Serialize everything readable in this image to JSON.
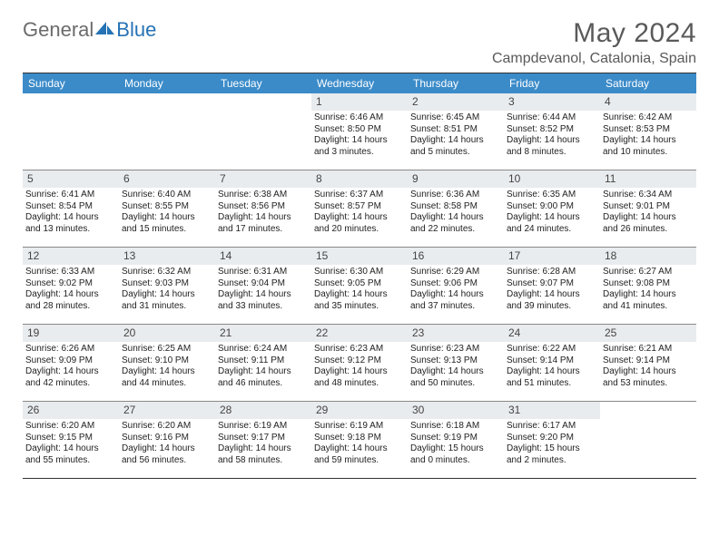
{
  "brand": {
    "word1": "General",
    "word2": "Blue"
  },
  "title": "May 2024",
  "location": "Campdevanol, Catalonia, Spain",
  "colors": {
    "header_bg": "#3b8bc9",
    "header_text": "#ffffff",
    "daynum_bg": "#e9ecef",
    "border": "#333333",
    "row_border": "#888888",
    "logo_gray": "#6b6b6b",
    "logo_blue": "#2572b4",
    "title_color": "#5a5a5a"
  },
  "day_names": [
    "Sunday",
    "Monday",
    "Tuesday",
    "Wednesday",
    "Thursday",
    "Friday",
    "Saturday"
  ],
  "weeks": [
    [
      {
        "n": "",
        "empty": true
      },
      {
        "n": "",
        "empty": true
      },
      {
        "n": "",
        "empty": true
      },
      {
        "n": "1",
        "sunrise": "Sunrise: 6:46 AM",
        "sunset": "Sunset: 8:50 PM",
        "daylight": "Daylight: 14 hours and 3 minutes."
      },
      {
        "n": "2",
        "sunrise": "Sunrise: 6:45 AM",
        "sunset": "Sunset: 8:51 PM",
        "daylight": "Daylight: 14 hours and 5 minutes."
      },
      {
        "n": "3",
        "sunrise": "Sunrise: 6:44 AM",
        "sunset": "Sunset: 8:52 PM",
        "daylight": "Daylight: 14 hours and 8 minutes."
      },
      {
        "n": "4",
        "sunrise": "Sunrise: 6:42 AM",
        "sunset": "Sunset: 8:53 PM",
        "daylight": "Daylight: 14 hours and 10 minutes."
      }
    ],
    [
      {
        "n": "5",
        "sunrise": "Sunrise: 6:41 AM",
        "sunset": "Sunset: 8:54 PM",
        "daylight": "Daylight: 14 hours and 13 minutes."
      },
      {
        "n": "6",
        "sunrise": "Sunrise: 6:40 AM",
        "sunset": "Sunset: 8:55 PM",
        "daylight": "Daylight: 14 hours and 15 minutes."
      },
      {
        "n": "7",
        "sunrise": "Sunrise: 6:38 AM",
        "sunset": "Sunset: 8:56 PM",
        "daylight": "Daylight: 14 hours and 17 minutes."
      },
      {
        "n": "8",
        "sunrise": "Sunrise: 6:37 AM",
        "sunset": "Sunset: 8:57 PM",
        "daylight": "Daylight: 14 hours and 20 minutes."
      },
      {
        "n": "9",
        "sunrise": "Sunrise: 6:36 AM",
        "sunset": "Sunset: 8:58 PM",
        "daylight": "Daylight: 14 hours and 22 minutes."
      },
      {
        "n": "10",
        "sunrise": "Sunrise: 6:35 AM",
        "sunset": "Sunset: 9:00 PM",
        "daylight": "Daylight: 14 hours and 24 minutes."
      },
      {
        "n": "11",
        "sunrise": "Sunrise: 6:34 AM",
        "sunset": "Sunset: 9:01 PM",
        "daylight": "Daylight: 14 hours and 26 minutes."
      }
    ],
    [
      {
        "n": "12",
        "sunrise": "Sunrise: 6:33 AM",
        "sunset": "Sunset: 9:02 PM",
        "daylight": "Daylight: 14 hours and 28 minutes."
      },
      {
        "n": "13",
        "sunrise": "Sunrise: 6:32 AM",
        "sunset": "Sunset: 9:03 PM",
        "daylight": "Daylight: 14 hours and 31 minutes."
      },
      {
        "n": "14",
        "sunrise": "Sunrise: 6:31 AM",
        "sunset": "Sunset: 9:04 PM",
        "daylight": "Daylight: 14 hours and 33 minutes."
      },
      {
        "n": "15",
        "sunrise": "Sunrise: 6:30 AM",
        "sunset": "Sunset: 9:05 PM",
        "daylight": "Daylight: 14 hours and 35 minutes."
      },
      {
        "n": "16",
        "sunrise": "Sunrise: 6:29 AM",
        "sunset": "Sunset: 9:06 PM",
        "daylight": "Daylight: 14 hours and 37 minutes."
      },
      {
        "n": "17",
        "sunrise": "Sunrise: 6:28 AM",
        "sunset": "Sunset: 9:07 PM",
        "daylight": "Daylight: 14 hours and 39 minutes."
      },
      {
        "n": "18",
        "sunrise": "Sunrise: 6:27 AM",
        "sunset": "Sunset: 9:08 PM",
        "daylight": "Daylight: 14 hours and 41 minutes."
      }
    ],
    [
      {
        "n": "19",
        "sunrise": "Sunrise: 6:26 AM",
        "sunset": "Sunset: 9:09 PM",
        "daylight": "Daylight: 14 hours and 42 minutes."
      },
      {
        "n": "20",
        "sunrise": "Sunrise: 6:25 AM",
        "sunset": "Sunset: 9:10 PM",
        "daylight": "Daylight: 14 hours and 44 minutes."
      },
      {
        "n": "21",
        "sunrise": "Sunrise: 6:24 AM",
        "sunset": "Sunset: 9:11 PM",
        "daylight": "Daylight: 14 hours and 46 minutes."
      },
      {
        "n": "22",
        "sunrise": "Sunrise: 6:23 AM",
        "sunset": "Sunset: 9:12 PM",
        "daylight": "Daylight: 14 hours and 48 minutes."
      },
      {
        "n": "23",
        "sunrise": "Sunrise: 6:23 AM",
        "sunset": "Sunset: 9:13 PM",
        "daylight": "Daylight: 14 hours and 50 minutes."
      },
      {
        "n": "24",
        "sunrise": "Sunrise: 6:22 AM",
        "sunset": "Sunset: 9:14 PM",
        "daylight": "Daylight: 14 hours and 51 minutes."
      },
      {
        "n": "25",
        "sunrise": "Sunrise: 6:21 AM",
        "sunset": "Sunset: 9:14 PM",
        "daylight": "Daylight: 14 hours and 53 minutes."
      }
    ],
    [
      {
        "n": "26",
        "sunrise": "Sunrise: 6:20 AM",
        "sunset": "Sunset: 9:15 PM",
        "daylight": "Daylight: 14 hours and 55 minutes."
      },
      {
        "n": "27",
        "sunrise": "Sunrise: 6:20 AM",
        "sunset": "Sunset: 9:16 PM",
        "daylight": "Daylight: 14 hours and 56 minutes."
      },
      {
        "n": "28",
        "sunrise": "Sunrise: 6:19 AM",
        "sunset": "Sunset: 9:17 PM",
        "daylight": "Daylight: 14 hours and 58 minutes."
      },
      {
        "n": "29",
        "sunrise": "Sunrise: 6:19 AM",
        "sunset": "Sunset: 9:18 PM",
        "daylight": "Daylight: 14 hours and 59 minutes."
      },
      {
        "n": "30",
        "sunrise": "Sunrise: 6:18 AM",
        "sunset": "Sunset: 9:19 PM",
        "daylight": "Daylight: 15 hours and 0 minutes."
      },
      {
        "n": "31",
        "sunrise": "Sunrise: 6:17 AM",
        "sunset": "Sunset: 9:20 PM",
        "daylight": "Daylight: 15 hours and 2 minutes."
      },
      {
        "n": "",
        "empty": true
      }
    ]
  ]
}
